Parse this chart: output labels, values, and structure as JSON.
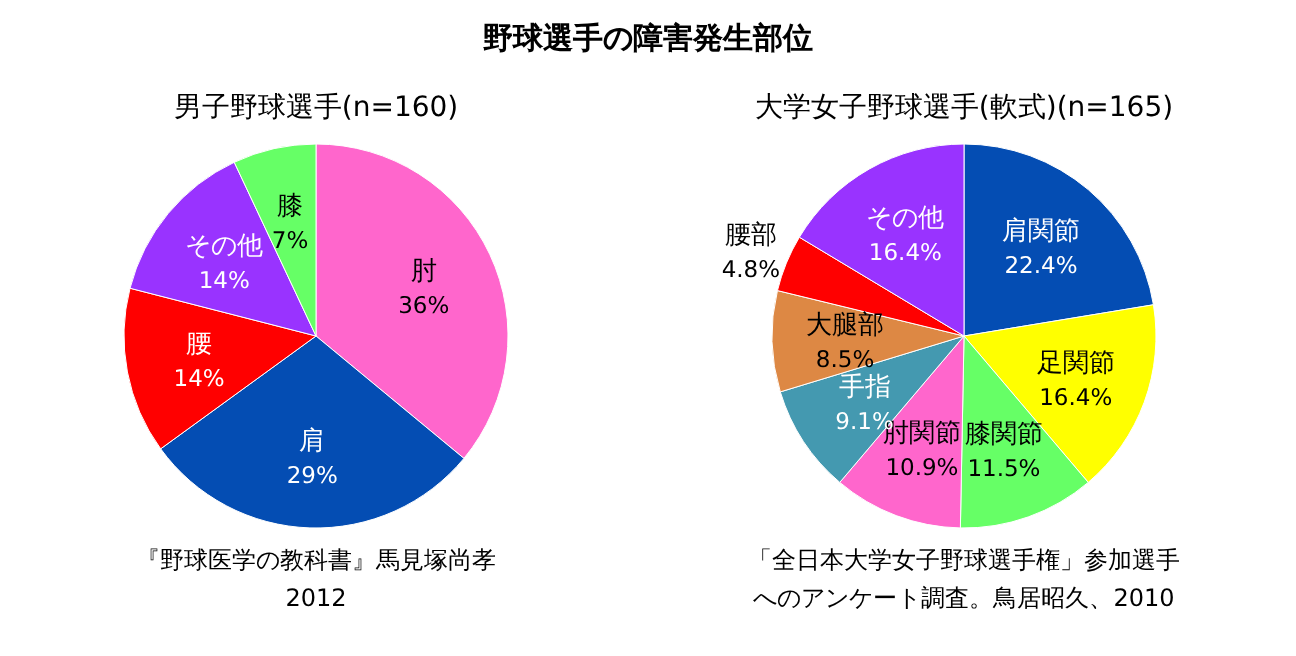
{
  "chart_data": [
    {
      "type": "pie",
      "title": "野球選手の障害発生部位",
      "subtitle": "男子野球選手(n=160)",
      "categories": [
        "肘",
        "肩",
        "腰",
        "その他",
        "膝"
      ],
      "values": [
        36,
        29,
        14,
        14,
        7
      ],
      "value_labels": [
        "36%",
        "29%",
        "14%",
        "14%",
        "7%"
      ],
      "colors": [
        "#ff66cc",
        "#044db3",
        "#ff0000",
        "#9933ff",
        "#66ff66"
      ],
      "annotations": [
        "『野球医学の教科書』馬見塚尚孝",
        "2012"
      ]
    },
    {
      "type": "pie",
      "subtitle": "大学女子野球選手(軟式)(n=165)",
      "categories": [
        "肩関節",
        "足関節",
        "膝関節",
        "肘関節",
        "手指",
        "大腿部",
        "腰部",
        "その他"
      ],
      "values": [
        22.4,
        16.4,
        11.5,
        10.9,
        9.1,
        8.5,
        4.8,
        16.4
      ],
      "value_labels": [
        "22.4%",
        "16.4%",
        "11.5%",
        "10.9%",
        "9.1%",
        "8.5%",
        "4.8%",
        "16.4%"
      ],
      "colors": [
        "#044db3",
        "#ffff00",
        "#66ff66",
        "#ff66cc",
        "#4499b0",
        "#dd8844",
        "#ff0000",
        "#9933ff"
      ],
      "annotations": [
        "「全日本大学女子野球選手権」参加選手",
        "へのアンケート調査。鳥居昭久、2010"
      ]
    }
  ]
}
